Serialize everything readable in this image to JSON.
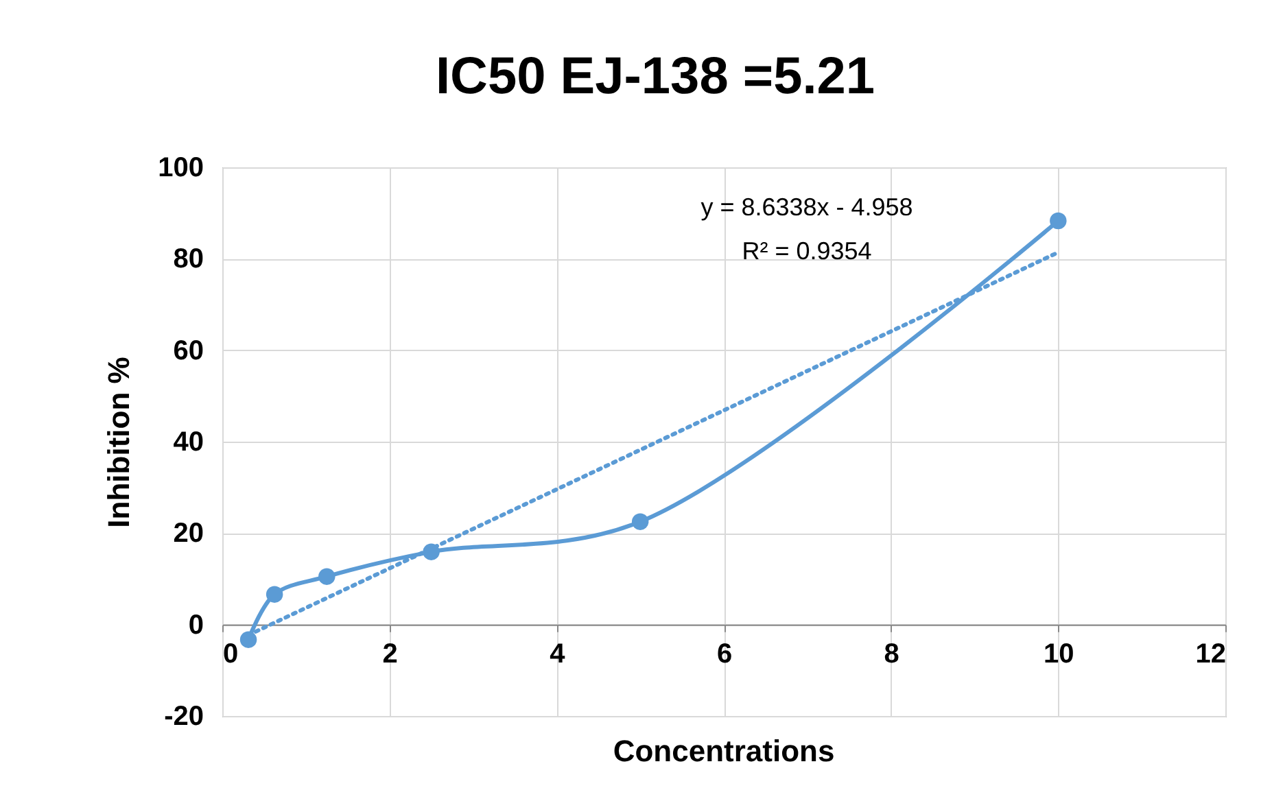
{
  "chart_data": {
    "type": "line",
    "title": "IC50 EJ-138 =5.21",
    "xlabel": "Concentrations",
    "ylabel": "Inhibition %",
    "series": [
      {
        "color": "#5b9bd5",
        "x": [
          0.3125,
          0.625,
          1.25,
          2.5,
          5,
          10
        ],
        "values": [
          -3.3,
          6.6,
          10.5,
          15.9,
          22.5,
          88.3
        ],
        "marker": "circle",
        "line_style": "solid"
      },
      {
        "color": "#5b9bd5",
        "x": [
          0.3125,
          10
        ],
        "values": [
          -2.3,
          81.4
        ],
        "marker": "none",
        "line_style": "dotted"
      }
    ],
    "annotations": [
      "y = 8.6338x - 4.958",
      "R² = 0.9354"
    ],
    "xlim": [
      0,
      12
    ],
    "xticks": [
      0,
      2,
      4,
      6,
      8,
      10,
      12
    ],
    "ylim": [
      -20,
      100
    ],
    "yticks": [
      -20,
      0,
      20,
      40,
      60,
      80,
      100
    ],
    "grid": true
  }
}
